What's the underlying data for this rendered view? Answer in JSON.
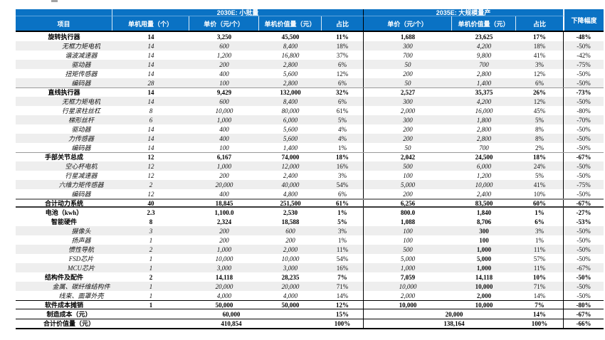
{
  "colors": {
    "header_bg": "#0a72c4",
    "header_divider": "#5ca4dd",
    "stripe": "#eeeeee",
    "separator": "#000000"
  },
  "table": {
    "group_2030": "2030E: 小批量",
    "group_2035": "2035E: 大规模量产",
    "decline_header": "下降幅度",
    "col_headers": [
      "项目",
      "单机用量（个）",
      "单价（元/个）",
      "单机价值量（元）",
      "占比",
      "单价（元/个）",
      "单机价值量（元）",
      "占比"
    ],
    "rows": [
      {
        "label": "旋转执行器",
        "style": "section",
        "cells": [
          "14",
          "3,250",
          "45,500",
          "11%",
          "1,688",
          "23,625",
          "17%",
          "-48%"
        ]
      },
      {
        "label": "无框力矩电机",
        "style": "sub",
        "cells": [
          "14",
          "600",
          "8,400",
          "18%",
          "300",
          "4,200",
          "18%",
          "-50%"
        ]
      },
      {
        "label": "谐波减速器",
        "style": "sub",
        "cells": [
          "14",
          "1,200",
          "16,800",
          "37%",
          "700",
          "9,800",
          "41%",
          "-42%"
        ]
      },
      {
        "label": "驱动器",
        "style": "sub",
        "cells": [
          "14",
          "200",
          "2,800",
          "6%",
          "50",
          "700",
          "3%",
          "-75%"
        ]
      },
      {
        "label": "扭矩传感器",
        "style": "sub",
        "cells": [
          "14",
          "400",
          "5,600",
          "12%",
          "200",
          "2,800",
          "12%",
          "-50%"
        ]
      },
      {
        "label": "编码器",
        "style": "sub",
        "cells": [
          "28",
          "100",
          "2,800",
          "6%",
          "50",
          "1,400",
          "6%",
          "-50%"
        ]
      },
      {
        "label": "直线执行器",
        "style": "section",
        "rule_top": true,
        "cells": [
          "14",
          "9,429",
          "132,000",
          "32%",
          "2,527",
          "35,375",
          "26%",
          "-73%"
        ]
      },
      {
        "label": "无框力矩电机",
        "style": "sub",
        "cells": [
          "14",
          "600",
          "8,400",
          "6%",
          "300",
          "4,200",
          "12%",
          "-50%"
        ]
      },
      {
        "label": "行星滚柱丝杠",
        "style": "sub",
        "cells": [
          "8",
          "10,000",
          "80,000",
          "61%",
          "2,000",
          "16,000",
          "45%",
          "-80%"
        ]
      },
      {
        "label": "梯形丝杆",
        "style": "sub",
        "cells": [
          "6",
          "1,000",
          "6,000",
          "5%",
          "300",
          "1,800",
          "5%",
          "-70%"
        ]
      },
      {
        "label": "驱动器",
        "style": "sub",
        "cells": [
          "14",
          "400",
          "5,600",
          "4%",
          "200",
          "2,800",
          "8%",
          "-50%"
        ]
      },
      {
        "label": "力传感器",
        "style": "sub",
        "cells": [
          "14",
          "400",
          "5,600",
          "4%",
          "200",
          "2,800",
          "8%",
          "-50%"
        ]
      },
      {
        "label": "编码器",
        "style": "sub",
        "cells": [
          "14",
          "100",
          "1,400",
          "1%",
          "50",
          "700",
          "2%",
          "-50%"
        ]
      },
      {
        "label": "手部关节总成",
        "style": "section",
        "rule_top": true,
        "cells": [
          "12",
          "6,167",
          "74,000",
          "18%",
          "2,042",
          "24,500",
          "18%",
          "-67%"
        ]
      },
      {
        "label": "空心杯电机",
        "style": "sub",
        "cells": [
          "12",
          "1,000",
          "12,000",
          "16%",
          "500",
          "6,000",
          "24%",
          "-50%"
        ]
      },
      {
        "label": "行星减速器",
        "style": "sub",
        "cells": [
          "12",
          "200",
          "2,400",
          "3%",
          "100",
          "1,200",
          "5%",
          "-50%"
        ]
      },
      {
        "label": "六维力矩传感器",
        "style": "sub",
        "cells": [
          "2",
          "20,000",
          "40,000",
          "54%",
          "5,000",
          "10,000",
          "41%",
          "-75%"
        ]
      },
      {
        "label": "编码器",
        "style": "sub",
        "cells": [
          "12",
          "400",
          "4,800",
          "6%",
          "200",
          "2,400",
          "10%",
          "-50%"
        ]
      },
      {
        "label": "合计动力系统",
        "style": "total",
        "cells": [
          "40",
          "18,845",
          "251,500",
          "61%",
          "6,256",
          "83,500",
          "60%",
          "-67%"
        ]
      },
      {
        "label": "电池（kwh）",
        "style": "section",
        "cells": [
          "2.3",
          "1,100.0",
          "2,530",
          "1%",
          "800.0",
          "1,840",
          "1%",
          "-27%"
        ]
      },
      {
        "label": "智能硬件",
        "style": "section",
        "cells": [
          "8",
          "2,324",
          "18,588",
          "5%",
          "1,088",
          "8,706",
          "6%",
          "-53%"
        ]
      },
      {
        "label": "摄像头",
        "style": "sub",
        "b35": true,
        "cells": [
          "3",
          "200",
          "600",
          "3%",
          "100",
          "300",
          "3%",
          "-50%"
        ]
      },
      {
        "label": "扬声器",
        "style": "sub",
        "b35": true,
        "cells": [
          "1",
          "200",
          "200",
          "1%",
          "100",
          "100",
          "1%",
          "-50%"
        ]
      },
      {
        "label": "惯性导航",
        "style": "sub",
        "b35": true,
        "cells": [
          "2",
          "1,000",
          "2,000",
          "11%",
          "500",
          "1,000",
          "11%",
          "-50%"
        ]
      },
      {
        "label": "FSD芯片",
        "style": "sub",
        "b35": true,
        "cells": [
          "1",
          "10,000",
          "10,000",
          "54%",
          "5,000",
          "5,000",
          "57%",
          "-50%"
        ]
      },
      {
        "label": "MCU芯片",
        "style": "sub",
        "b35": true,
        "cells": [
          "1",
          "3,000",
          "3,000",
          "16%",
          "1,000",
          "1,000",
          "11%",
          "-67%"
        ]
      },
      {
        "label": "结构件及配件",
        "style": "section",
        "cells": [
          "2",
          "14,118",
          "28,235",
          "7%",
          "7,059",
          "14,118",
          "10%",
          "-50%"
        ]
      },
      {
        "label": "金属、碳纤维结构件",
        "style": "sub",
        "b35": true,
        "cells": [
          "1",
          "20,000",
          "20,000",
          "71%",
          "10,000",
          "10,000",
          "71%",
          "-50%"
        ]
      },
      {
        "label": "线束、面罩外壳",
        "style": "sub",
        "b35": true,
        "cells": [
          "1",
          "4,000",
          "4,000",
          "14%",
          "2,000",
          "2,000",
          "14%",
          "-50%"
        ]
      },
      {
        "label": "软件成本摊销",
        "style": "software",
        "cells": [
          "1",
          "50,000",
          "50,000",
          "12%",
          "10,000",
          "10,000",
          "7%",
          "-80%"
        ]
      }
    ],
    "footer_rows": [
      {
        "label": "制造成本（元）",
        "value_2030": "60,000",
        "pct_2030": "15%",
        "value_2035": "20,000",
        "pct_2035": "14%",
        "decline": "-67%"
      },
      {
        "label": "合计价值量（元）",
        "value_2030": "410,854",
        "pct_2030": "100%",
        "value_2035": "138,164",
        "pct_2035": "100%",
        "decline": "-66%"
      }
    ]
  }
}
